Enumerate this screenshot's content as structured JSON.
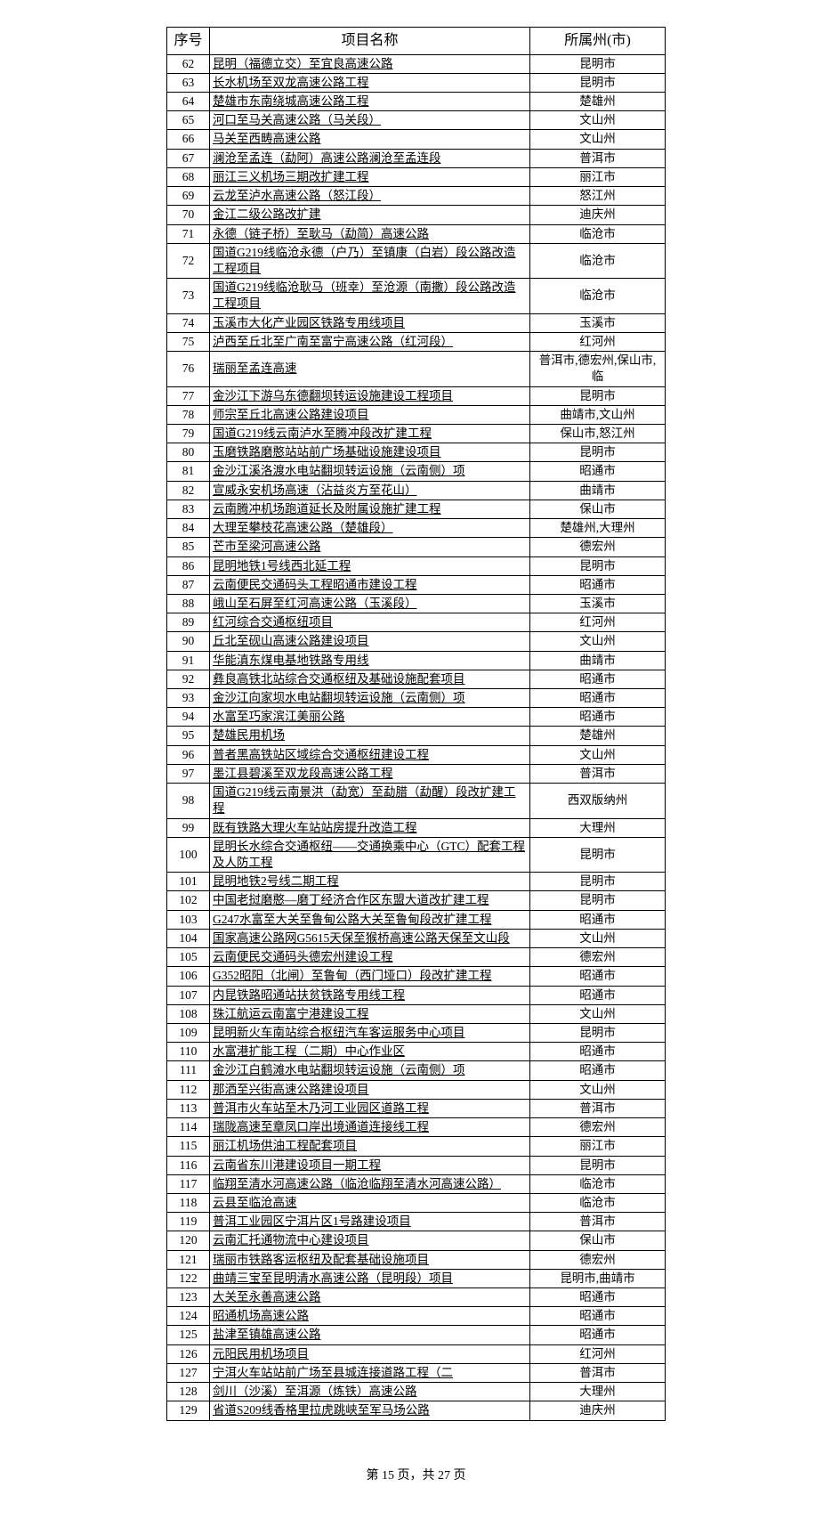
{
  "headers": {
    "seq": "序号",
    "name": "项目名称",
    "region": "所属州(市)"
  },
  "rows": [
    {
      "seq": "62",
      "name": "昆明（福德立交）至宜良高速公路",
      "region": "昆明市"
    },
    {
      "seq": "63",
      "name": "长水机场至双龙高速公路工程",
      "region": "昆明市"
    },
    {
      "seq": "64",
      "name": "楚雄市东南绕城高速公路工程",
      "region": "楚雄州"
    },
    {
      "seq": "65",
      "name": "河口至马关高速公路（马关段）",
      "region": "文山州"
    },
    {
      "seq": "66",
      "name": "马关至西畴高速公路",
      "region": "文山州"
    },
    {
      "seq": "67",
      "name": "澜沧至孟连（勐阿）高速公路澜沧至孟连段",
      "region": "普洱市"
    },
    {
      "seq": "68",
      "name": "丽江三义机场三期改扩建工程",
      "region": "丽江市"
    },
    {
      "seq": "69",
      "name": "云龙至泸水高速公路（怒江段）",
      "region": "怒江州"
    },
    {
      "seq": "70",
      "name": "金江二级公路改扩建",
      "region": "迪庆州"
    },
    {
      "seq": "71",
      "name": "永德（链子桥）至耿马（勐简）高速公路",
      "region": "临沧市"
    },
    {
      "seq": "72",
      "name": "国道G219线临沧永德（户乃）至镇康（白岩）段公路改造工程项目",
      "region": "临沧市"
    },
    {
      "seq": "73",
      "name": "国道G219线临沧耿马（班幸）至沧源（南撒）段公路改造工程项目",
      "region": "临沧市"
    },
    {
      "seq": "74",
      "name": "玉溪市大化产业园区铁路专用线项目",
      "region": "玉溪市"
    },
    {
      "seq": "75",
      "name": "泸西至丘北至广南至富宁高速公路（红河段）",
      "region": "红河州"
    },
    {
      "seq": "76",
      "name": "瑞丽至孟连高速",
      "region": "普洱市,德宏州,保山市,临"
    },
    {
      "seq": "77",
      "name": "金沙江下游乌东德翻坝转运设施建设工程项目",
      "region": "昆明市"
    },
    {
      "seq": "78",
      "name": "师宗至丘北高速公路建设项目",
      "region": "曲靖市,文山州"
    },
    {
      "seq": "79",
      "name": "国道G219线云南泸水至腾冲段改扩建工程",
      "region": "保山市,怒江州"
    },
    {
      "seq": "80",
      "name": "玉磨铁路磨憨站站前广场基础设施建设项目",
      "region": "昆明市"
    },
    {
      "seq": "81",
      "name": "金沙江溪洛渡水电站翻坝转运设施（云南侧）项",
      "region": "昭通市"
    },
    {
      "seq": "82",
      "name": "宣威永安机场高速（沾益炎方至花山）",
      "region": "曲靖市"
    },
    {
      "seq": "83",
      "name": "云南腾冲机场跑道延长及附属设施扩建工程",
      "region": "保山市"
    },
    {
      "seq": "84",
      "name": "大理至攀枝花高速公路（楚雄段）",
      "region": "楚雄州,大理州"
    },
    {
      "seq": "85",
      "name": "芒市至梁河高速公路",
      "region": "德宏州"
    },
    {
      "seq": "86",
      "name": "昆明地铁1号线西北延工程",
      "region": "昆明市"
    },
    {
      "seq": "87",
      "name": "云南便民交通码头工程昭通市建设工程",
      "region": "昭通市"
    },
    {
      "seq": "88",
      "name": "峨山至石屏至红河高速公路（玉溪段）",
      "region": "玉溪市"
    },
    {
      "seq": "89",
      "name": "红河综合交通枢纽项目",
      "region": "红河州"
    },
    {
      "seq": "90",
      "name": "丘北至砚山高速公路建设项目",
      "region": "文山州"
    },
    {
      "seq": "91",
      "name": "华能滇东煤电基地铁路专用线",
      "region": "曲靖市"
    },
    {
      "seq": "92",
      "name": "彝良高铁北站综合交通枢纽及基础设施配套项目",
      "region": "昭通市"
    },
    {
      "seq": "93",
      "name": "金沙江向家坝水电站翻坝转运设施（云南侧）项",
      "region": "昭通市"
    },
    {
      "seq": "94",
      "name": "水富至巧家滨江美丽公路",
      "region": "昭通市"
    },
    {
      "seq": "95",
      "name": "楚雄民用机场",
      "region": "楚雄州"
    },
    {
      "seq": "96",
      "name": "普者黑高铁站区域综合交通枢纽建设工程",
      "region": "文山州"
    },
    {
      "seq": "97",
      "name": "墨江县碧溪至双龙段高速公路工程",
      "region": "普洱市"
    },
    {
      "seq": "98",
      "name": "国道G219线云南景洪（勐宽）至勐腊（勐醒）段改扩建工程",
      "region": "西双版纳州"
    },
    {
      "seq": "99",
      "name": "既有铁路大理火车站站房提升改造工程",
      "region": "大理州"
    },
    {
      "seq": "100",
      "name": "昆明长水综合交通枢纽——交通换乘中心（GTC）配套工程及人防工程",
      "region": "昆明市"
    },
    {
      "seq": "101",
      "name": "昆明地铁2号线二期工程",
      "region": "昆明市"
    },
    {
      "seq": "102",
      "name": "中国老挝磨憨—磨丁经济合作区东盟大道改扩建工程",
      "region": "昆明市"
    },
    {
      "seq": "103",
      "name": "G247水富至大关至鲁甸公路大关至鲁甸段改扩建工程",
      "region": "昭通市"
    },
    {
      "seq": "104",
      "name": "国家高速公路网G5615天保至猴桥高速公路天保至文山段",
      "region": "文山州"
    },
    {
      "seq": "105",
      "name": "云南便民交通码头德宏州建设工程",
      "region": "德宏州"
    },
    {
      "seq": "106",
      "name": "G352昭阳（北闸）至鲁甸（西门垭口）段改扩建工程",
      "region": "昭通市"
    },
    {
      "seq": "107",
      "name": "内昆铁路昭通站扶贫铁路专用线工程",
      "region": "昭通市"
    },
    {
      "seq": "108",
      "name": "珠江航运云南富宁港建设工程",
      "region": "文山州"
    },
    {
      "seq": "109",
      "name": "昆明新火车南站综合枢纽汽车客运服务中心项目",
      "region": "昆明市"
    },
    {
      "seq": "110",
      "name": "水富港扩能工程（二期）中心作业区",
      "region": "昭通市"
    },
    {
      "seq": "111",
      "name": "金沙江白鹤滩水电站翻坝转运设施（云南侧）项",
      "region": "昭通市"
    },
    {
      "seq": "112",
      "name": "那洒至兴街高速公路建设项目",
      "region": "文山州"
    },
    {
      "seq": "113",
      "name": "普洱市火车站至木乃河工业园区道路工程",
      "region": "普洱市"
    },
    {
      "seq": "114",
      "name": "瑞陇高速至章凤口岸出境通道连接线工程",
      "region": "德宏州"
    },
    {
      "seq": "115",
      "name": "丽江机场供油工程配套项目",
      "region": "丽江市"
    },
    {
      "seq": "116",
      "name": "云南省东川港建设项目一期工程",
      "region": "昆明市"
    },
    {
      "seq": "117",
      "name": "临翔至清水河高速公路（临沧临翔至清水河高速公路）",
      "region": "临沧市"
    },
    {
      "seq": "118",
      "name": "云县至临沧高速",
      "region": "临沧市"
    },
    {
      "seq": "119",
      "name": "普洱工业园区宁洱片区1号路建设项目",
      "region": "普洱市"
    },
    {
      "seq": "120",
      "name": "云南汇托通物流中心建设项目",
      "region": "保山市"
    },
    {
      "seq": "121",
      "name": "瑞丽市铁路客运枢纽及配套基础设施项目",
      "region": "德宏州"
    },
    {
      "seq": "122",
      "name": "曲靖三宝至昆明清水高速公路（昆明段）项目",
      "region": "昆明市,曲靖市"
    },
    {
      "seq": "123",
      "name": "大关至永善高速公路",
      "region": "昭通市"
    },
    {
      "seq": "124",
      "name": "昭通机场高速公路",
      "region": "昭通市"
    },
    {
      "seq": "125",
      "name": "盐津至镇雄高速公路",
      "region": "昭通市"
    },
    {
      "seq": "126",
      "name": "元阳民用机场项目",
      "region": "红河州"
    },
    {
      "seq": "127",
      "name": "宁洱火车站站前广场至县城连接道路工程（二",
      "region": "普洱市"
    },
    {
      "seq": "128",
      "name": "剑川（沙溪）至洱源（炼铁）高速公路",
      "region": "大理州"
    },
    {
      "seq": "129",
      "name": "省道S209线香格里拉虎跳峡至军马场公路",
      "region": "迪庆州"
    }
  ],
  "footer": {
    "page_current": "15",
    "page_total": "27",
    "prefix": "第 ",
    "mid": " 页，共 ",
    "suffix": " 页"
  },
  "style": {
    "background_color": "#ffffff",
    "border_color": "#000000",
    "text_color": "#000000",
    "header_fontsize_pt": 12,
    "body_fontsize_pt": 10.5,
    "underline_name": true
  }
}
